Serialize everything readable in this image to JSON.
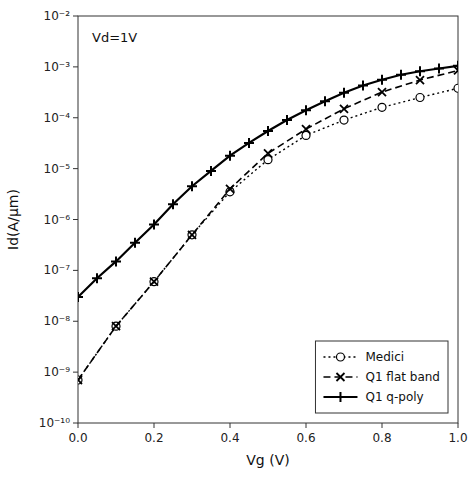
{
  "chart_data": {
    "type": "line",
    "xlabel": "Vg (V)",
    "ylabel": "Id(A/μm)",
    "annotations": [
      "Vd=1V"
    ],
    "log": "y",
    "grid": false,
    "legend": "lower right",
    "color": "#000000",
    "xlim": [
      0,
      1.0
    ],
    "ylim": [
      1e-10,
      0.01
    ],
    "xticks": [
      {
        "value": 0,
        "label": "0.0"
      },
      0.2,
      0.4,
      0.6,
      0.8,
      {
        "value": 1.0,
        "label": "1.0"
      }
    ],
    "yticks": [
      {
        "value": 1e-10,
        "label": "10⁻¹⁰"
      },
      {
        "value": 1e-09,
        "label": "10⁻⁹"
      },
      {
        "value": 1e-08,
        "label": "10⁻⁸"
      },
      {
        "value": 1e-07,
        "label": "10⁻⁷"
      },
      {
        "value": 1e-06,
        "label": "10⁻⁶"
      },
      {
        "value": 1e-05,
        "label": "10⁻⁵"
      },
      {
        "value": 0.0001,
        "label": "10⁻⁴"
      },
      {
        "value": 0.001,
        "label": "10⁻³"
      },
      {
        "value": 0.01,
        "label": "10⁻²"
      }
    ],
    "series": [
      {
        "name": "Medici",
        "line_style": "dotted",
        "marker": "circle",
        "x": [
          0.0,
          0.1,
          0.2,
          0.3,
          0.4,
          0.5,
          0.6,
          0.7,
          0.8,
          0.9,
          1.0
        ],
        "values": [
          7e-10,
          8e-09,
          6e-08,
          5e-07,
          3.5e-06,
          1.5e-05,
          4.5e-05,
          9e-05,
          0.00016,
          0.00025,
          0.00038
        ]
      },
      {
        "name": "Q1 flat band",
        "line_style": "dashed",
        "marker": "x",
        "x": [
          0.0,
          0.1,
          0.2,
          0.3,
          0.4,
          0.5,
          0.6,
          0.7,
          0.8,
          0.9,
          1.0
        ],
        "values": [
          7e-10,
          8e-09,
          6e-08,
          5e-07,
          4e-06,
          2e-05,
          6e-05,
          0.00015,
          0.00032,
          0.00055,
          0.00085
        ]
      },
      {
        "name": "Q1 q-poly",
        "line_style": "solid",
        "marker": "plus",
        "x": [
          0.0,
          0.05,
          0.1,
          0.15,
          0.2,
          0.25,
          0.3,
          0.35,
          0.4,
          0.45,
          0.5,
          0.55,
          0.6,
          0.65,
          0.7,
          0.75,
          0.8,
          0.85,
          0.9,
          0.95,
          1.0
        ],
        "values": [
          3e-08,
          7e-08,
          1.5e-07,
          3.5e-07,
          8e-07,
          2e-06,
          4.5e-06,
          9e-06,
          1.8e-05,
          3.2e-05,
          5.5e-05,
          9e-05,
          0.00014,
          0.00021,
          0.00031,
          0.00043,
          0.00056,
          0.0007,
          0.00082,
          0.00093,
          0.00105
        ]
      }
    ]
  }
}
